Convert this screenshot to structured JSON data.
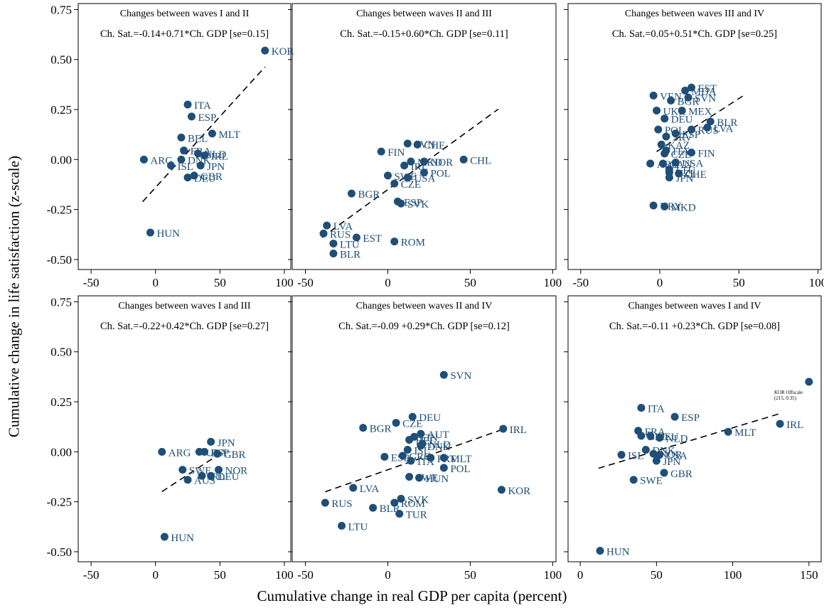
{
  "figure": {
    "xlabel": "Cumulative change in real GDP per capita (percent)",
    "ylabel": "Cumulative change in life satisfaction (z-scale)",
    "marker_color": "#1f4e79",
    "label_color": "#1f4e79"
  },
  "chart_data": [
    {
      "type": "scatter",
      "title": "Changes between waves I and II",
      "equation": "Ch. Sat.=-0.14+0.71*Ch. GDP [se=0.15]",
      "xlim": [
        -60,
        105
      ],
      "ylim": [
        -0.55,
        0.78
      ],
      "xticks": [
        -50,
        0,
        50,
        100
      ],
      "xtick_labels": [
        "-50",
        "0",
        "50",
        "100"
      ],
      "yticks": [
        -0.5,
        -0.25,
        0,
        0.25,
        0.5,
        0.75
      ],
      "ytick_labels": [
        "-0.50",
        "-0.25",
        "0.00",
        "0.25",
        "0.50",
        "0.75"
      ],
      "fit": {
        "intercept": -0.14,
        "slope": 0.71,
        "x_range": [
          -10,
          85
        ]
      },
      "points": [
        {
          "label": "KOR",
          "x": 85,
          "y": 0.545
        },
        {
          "label": "ITA",
          "x": 25,
          "y": 0.275
        },
        {
          "label": "ESP",
          "x": 28,
          "y": 0.215
        },
        {
          "label": "MLT",
          "x": 44,
          "y": 0.13
        },
        {
          "label": "BEL",
          "x": 20,
          "y": 0.11
        },
        {
          "label": "FRA",
          "x": 22,
          "y": 0.045
        },
        {
          "label": "NLD",
          "x": 33,
          "y": 0.03
        },
        {
          "label": "IRL",
          "x": 38,
          "y": 0.02
        },
        {
          "label": "ARG",
          "x": -9,
          "y": 0.0
        },
        {
          "label": "DNK",
          "x": 20,
          "y": 0.0
        },
        {
          "label": "JPN",
          "x": 35,
          "y": -0.03
        },
        {
          "label": "ISL",
          "x": 12,
          "y": -0.03
        },
        {
          "label": "GBR",
          "x": 30,
          "y": -0.08
        },
        {
          "label": "DEU",
          "x": 25,
          "y": -0.09
        },
        {
          "label": "HUN",
          "x": -4,
          "y": -0.365
        }
      ]
    },
    {
      "type": "scatter",
      "title": "Changes between waves II and III",
      "equation": "Ch. Sat.=-0.15+0.60*Ch. GDP [se=0.11]",
      "xlim": [
        -58,
        102
      ],
      "ylim": [
        -0.55,
        0.78
      ],
      "xticks": [
        -50,
        0,
        50,
        100
      ],
      "xtick_labels": [
        "-50",
        "0",
        "50",
        "100"
      ],
      "yticks": [
        -0.5,
        -0.25,
        0,
        0.25,
        0.5,
        0.75
      ],
      "fit": {
        "intercept": -0.15,
        "slope": 0.6,
        "x_range": [
          -40,
          67
        ]
      },
      "points": [
        {
          "label": "SVN",
          "x": 12,
          "y": 0.08
        },
        {
          "label": "CHE",
          "x": 18,
          "y": 0.075
        },
        {
          "label": "FIN",
          "x": -4,
          "y": 0.04
        },
        {
          "label": "CHL",
          "x": 46,
          "y": 0.0
        },
        {
          "label": "NOR",
          "x": 22,
          "y": -0.01
        },
        {
          "label": "MKD",
          "x": 14,
          "y": -0.01
        },
        {
          "label": "IRL",
          "x": 10,
          "y": -0.03
        },
        {
          "label": "POL",
          "x": 22,
          "y": -0.065
        },
        {
          "label": "SWE",
          "x": 0,
          "y": -0.08
        },
        {
          "label": "USA",
          "x": 12,
          "y": -0.09
        },
        {
          "label": "CZE",
          "x": 4,
          "y": -0.12
        },
        {
          "label": "BGR",
          "x": -22,
          "y": -0.17
        },
        {
          "label": "ESP",
          "x": 6,
          "y": -0.21
        },
        {
          "label": "SVK",
          "x": 8,
          "y": -0.22
        },
        {
          "label": "LVA",
          "x": -37,
          "y": -0.33
        },
        {
          "label": "RUS",
          "x": -39,
          "y": -0.37
        },
        {
          "label": "EST",
          "x": -19,
          "y": -0.39
        },
        {
          "label": "LTU",
          "x": -33,
          "y": -0.42
        },
        {
          "label": "ROM",
          "x": 4,
          "y": -0.41
        },
        {
          "label": "BLR",
          "x": -33,
          "y": -0.47
        }
      ]
    },
    {
      "type": "scatter",
      "title": "Changes between waves III and IV",
      "equation": "Ch. Sat.=0.05+0.51*Ch. GDP [se=0.25]",
      "xlim": [
        -58,
        102
      ],
      "ylim": [
        -0.55,
        0.78
      ],
      "xticks": [
        -50,
        0,
        50,
        100
      ],
      "xtick_labels": [
        "-50",
        "0",
        "50",
        "100"
      ],
      "yticks": [
        -0.5,
        -0.25,
        0,
        0.25,
        0.5,
        0.75
      ],
      "fit": {
        "intercept": 0.05,
        "slope": 0.51,
        "x_range": [
          -2,
          54
        ]
      },
      "points": [
        {
          "label": "EST",
          "x": 20,
          "y": 0.36
        },
        {
          "label": "MDA",
          "x": 16,
          "y": 0.345
        },
        {
          "label": "VEN",
          "x": -4,
          "y": 0.32
        },
        {
          "label": "SVN",
          "x": 18,
          "y": 0.31
        },
        {
          "label": "BGR",
          "x": 7,
          "y": 0.295
        },
        {
          "label": "UKR",
          "x": -2,
          "y": 0.245
        },
        {
          "label": "MEX",
          "x": 14,
          "y": 0.245
        },
        {
          "label": "DEU",
          "x": 3,
          "y": 0.205
        },
        {
          "label": "BLR",
          "x": 32,
          "y": 0.19
        },
        {
          "label": "LVA",
          "x": 30,
          "y": 0.16
        },
        {
          "label": "RUS",
          "x": 20,
          "y": 0.15
        },
        {
          "label": "POL",
          "x": -1,
          "y": 0.15
        },
        {
          "label": "ESP",
          "x": 10,
          "y": 0.13
        },
        {
          "label": "SRV",
          "x": 4,
          "y": 0.115
        },
        {
          "label": "KAZ",
          "x": 1,
          "y": 0.075
        },
        {
          "label": "ITA",
          "x": 4,
          "y": 0.045
        },
        {
          "label": "FIN",
          "x": 20,
          "y": 0.035
        },
        {
          "label": "CZE",
          "x": 3,
          "y": 0.03
        },
        {
          "label": "USA",
          "x": 10,
          "y": -0.015
        },
        {
          "label": "ARG",
          "x": -6,
          "y": -0.02
        },
        {
          "label": "CAN",
          "x": 2,
          "y": -0.02
        },
        {
          "label": "LTU",
          "x": 6,
          "y": -0.05
        },
        {
          "label": "NZL",
          "x": 6,
          "y": -0.065
        },
        {
          "label": "CHE",
          "x": 12,
          "y": -0.07
        },
        {
          "label": "JPN",
          "x": 6,
          "y": -0.09
        },
        {
          "label": "URY",
          "x": -4,
          "y": -0.23
        },
        {
          "label": "MKD",
          "x": 3,
          "y": -0.235
        }
      ]
    },
    {
      "type": "scatter",
      "title": "Changes between waves I and III",
      "equation": "Ch. Sat.=-0.22+0.42*Ch. GDP [se=0.27]",
      "xlim": [
        -60,
        105
      ],
      "ylim": [
        -0.55,
        0.78
      ],
      "xticks": [
        -50,
        0,
        50,
        100
      ],
      "xtick_labels": [
        "-50",
        "0",
        "50",
        "100"
      ],
      "yticks": [
        -0.5,
        -0.25,
        0,
        0.25,
        0.5,
        0.75
      ],
      "ytick_labels": [
        "-0.50",
        "-0.25",
        "0.00",
        "0.25",
        "0.50",
        "0.75"
      ],
      "fit": {
        "intercept": -0.22,
        "slope": 0.42,
        "x_range": [
          5,
          50
        ]
      },
      "points": [
        {
          "label": "JPN",
          "x": 43,
          "y": 0.05
        },
        {
          "label": "ARG",
          "x": 5,
          "y": 0.0
        },
        {
          "label": "USA",
          "x": 34,
          "y": 0.0
        },
        {
          "label": "ESP",
          "x": 38,
          "y": 0.0
        },
        {
          "label": "GBR",
          "x": 48,
          "y": -0.01
        },
        {
          "label": "SWE",
          "x": 21,
          "y": -0.09
        },
        {
          "label": "NOR",
          "x": 49,
          "y": -0.09
        },
        {
          "label": "IRL",
          "x": 36,
          "y": -0.12
        },
        {
          "label": "DEU",
          "x": 43,
          "y": -0.12
        },
        {
          "label": "AUS",
          "x": 25,
          "y": -0.14
        },
        {
          "label": "HUN",
          "x": 7,
          "y": -0.425
        }
      ]
    },
    {
      "type": "scatter",
      "title": "Changes between waves II and IV",
      "equation": "Ch. Sat.=-0.09 +0.29*Ch. GDP [se=0.12]",
      "xlim": [
        -58,
        102
      ],
      "ylim": [
        -0.55,
        0.78
      ],
      "xticks": [
        -50,
        0,
        50,
        100
      ],
      "xtick_labels": [
        "-50",
        "0",
        "50",
        "100"
      ],
      "yticks": [
        -0.5,
        -0.25,
        0,
        0.25,
        0.5,
        0.75
      ],
      "fit": {
        "intercept": -0.09,
        "slope": 0.29,
        "x_range": [
          -38,
          68
        ]
      },
      "points": [
        {
          "label": "SVN",
          "x": 34,
          "y": 0.385
        },
        {
          "label": "DEU",
          "x": 15,
          "y": 0.175
        },
        {
          "label": "CZE",
          "x": 5,
          "y": 0.145
        },
        {
          "label": "BGR",
          "x": -15,
          "y": 0.12
        },
        {
          "label": "IRL",
          "x": 70,
          "y": 0.115
        },
        {
          "label": "AUT",
          "x": 20,
          "y": 0.09
        },
        {
          "label": "FIN",
          "x": 16,
          "y": 0.075
        },
        {
          "label": "BEL",
          "x": 13,
          "y": 0.06
        },
        {
          "label": "NLD",
          "x": 21,
          "y": 0.04
        },
        {
          "label": "DNK",
          "x": 20,
          "y": 0.03
        },
        {
          "label": "ISL",
          "x": 12,
          "y": 0.01
        },
        {
          "label": "GRC",
          "x": 9,
          "y": -0.02
        },
        {
          "label": "ESP",
          "x": -2,
          "y": -0.025
        },
        {
          "label": "PRT",
          "x": 26,
          "y": -0.03
        },
        {
          "label": "MLT",
          "x": 34,
          "y": -0.03
        },
        {
          "label": "ITA",
          "x": 14,
          "y": -0.045
        },
        {
          "label": "POL",
          "x": 34,
          "y": -0.08
        },
        {
          "label": "SWE",
          "x": 13,
          "y": -0.125
        },
        {
          "label": "HUN",
          "x": 19,
          "y": -0.13
        },
        {
          "label": "KOR",
          "x": 69,
          "y": -0.19
        },
        {
          "label": "LVA",
          "x": -21,
          "y": -0.18
        },
        {
          "label": "SVK",
          "x": 8,
          "y": -0.235
        },
        {
          "label": "ROM",
          "x": 4,
          "y": -0.255
        },
        {
          "label": "RUS",
          "x": -38,
          "y": -0.255
        },
        {
          "label": "BLR",
          "x": -9,
          "y": -0.28
        },
        {
          "label": "TUR",
          "x": 7,
          "y": -0.31
        },
        {
          "label": "LTU",
          "x": -28,
          "y": -0.37
        }
      ]
    },
    {
      "type": "scatter",
      "title": "Changes between waves I and IV",
      "equation": "Ch. Sat.=-0.11 +0.23*Ch. GDP [se=0.08]",
      "xlim": [
        -8,
        158
      ],
      "ylim": [
        -0.55,
        0.78
      ],
      "xticks": [
        0,
        50,
        100,
        150
      ],
      "xtick_labels": [
        "0",
        "50",
        "100",
        "150"
      ],
      "yticks": [
        -0.5,
        -0.25,
        0,
        0.25,
        0.5,
        0.75
      ],
      "fit": {
        "intercept": -0.11,
        "slope": 0.23,
        "x_range": [
          12,
          130
        ]
      },
      "annotation": {
        "line1": "KOR Offscale",
        "line2": "(215, 0.35)"
      },
      "points": [
        {
          "label": "",
          "x": 150,
          "y": 0.35
        },
        {
          "label": "ITA",
          "x": 40,
          "y": 0.22
        },
        {
          "label": "ESP",
          "x": 62,
          "y": 0.175
        },
        {
          "label": "IRL",
          "x": 131,
          "y": 0.14
        },
        {
          "label": "FRA",
          "x": 38,
          "y": 0.105
        },
        {
          "label": "MLT",
          "x": 97,
          "y": 0.1
        },
        {
          "label": "BEL",
          "x": 40,
          "y": 0.08
        },
        {
          "label": "DEU",
          "x": 46,
          "y": 0.08
        },
        {
          "label": "NLD",
          "x": 52,
          "y": 0.07
        },
        {
          "label": "DNK",
          "x": 43,
          "y": 0.01
        },
        {
          "label": "ISL",
          "x": 27,
          "y": -0.015
        },
        {
          "label": "NOR",
          "x": 48,
          "y": -0.01
        },
        {
          "label": "USA",
          "x": 52,
          "y": -0.015
        },
        {
          "label": "JPN",
          "x": 50,
          "y": -0.045
        },
        {
          "label": "GBR",
          "x": 55,
          "y": -0.105
        },
        {
          "label": "SWE",
          "x": 35,
          "y": -0.14
        },
        {
          "label": "HUN",
          "x": 13,
          "y": -0.495
        }
      ]
    }
  ]
}
